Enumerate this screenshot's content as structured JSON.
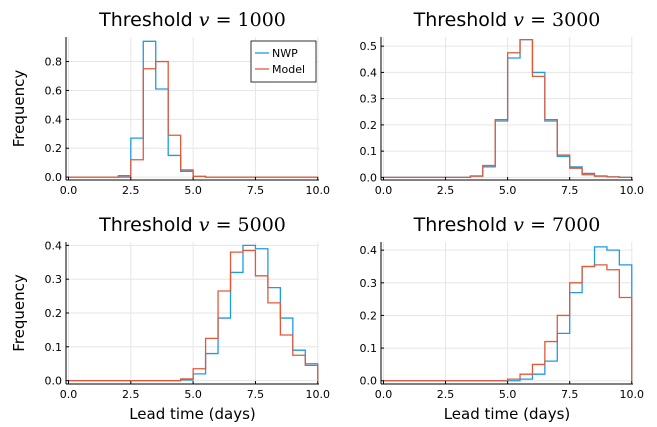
{
  "colors": {
    "nwp": "#1f9be0",
    "model": "#e05a3a"
  },
  "legend": {
    "items": [
      "NWP",
      "Model"
    ],
    "placement": "top-right"
  },
  "chart_data": [
    {
      "type": "line",
      "title_prefix": "Threshold",
      "title_var": "v",
      "title_eq": " = ",
      "title_value": "1000",
      "xlabel": "",
      "ylabel": "Frequency",
      "xlim": [
        -0.1,
        10.05
      ],
      "ylim": [
        -0.02,
        0.97
      ],
      "xticks": [
        "0.0",
        "2.5",
        "5.0",
        "7.5",
        "10.0"
      ],
      "xtick_values": [
        0,
        2.5,
        5,
        7.5,
        10
      ],
      "yticks": [
        "0.0",
        "0.2",
        "0.4",
        "0.6",
        "0.8"
      ],
      "ytick_values": [
        0,
        0.2,
        0.4,
        0.6,
        0.8
      ],
      "bin_edges": [
        0,
        0.5,
        1,
        1.5,
        2,
        2.5,
        3,
        3.5,
        4,
        4.5,
        5,
        5.5,
        6,
        6.5,
        7,
        7.5,
        8,
        8.5,
        9,
        9.5,
        10
      ],
      "grid": true,
      "show_legend": true,
      "series": [
        {
          "name": "NWP",
          "values": [
            0,
            0,
            0,
            0,
            0.01,
            0.27,
            0.94,
            0.61,
            0.15,
            0.04,
            0.005,
            0,
            0,
            0,
            0,
            0,
            0,
            0,
            0,
            0
          ]
        },
        {
          "name": "Model",
          "values": [
            0,
            0,
            0,
            0,
            0,
            0.12,
            0.75,
            0.8,
            0.29,
            0.05,
            0.005,
            0,
            0,
            0,
            0,
            0,
            0,
            0,
            0,
            0
          ]
        }
      ]
    },
    {
      "type": "line",
      "title_prefix": "Threshold",
      "title_var": "v",
      "title_eq": " = ",
      "title_value": "3000",
      "xlabel": "",
      "ylabel": "",
      "xlim": [
        -0.1,
        10.05
      ],
      "ylim": [
        -0.01,
        0.535
      ],
      "xticks": [
        "0.0",
        "2.5",
        "5.0",
        "7.5",
        "10.0"
      ],
      "xtick_values": [
        0,
        2.5,
        5,
        7.5,
        10
      ],
      "yticks": [
        "0.0",
        "0.1",
        "0.2",
        "0.3",
        "0.4",
        "0.5"
      ],
      "ytick_values": [
        0,
        0.1,
        0.2,
        0.3,
        0.4,
        0.5
      ],
      "bin_edges": [
        0,
        0.5,
        1,
        1.5,
        2,
        2.5,
        3,
        3.5,
        4,
        4.5,
        5,
        5.5,
        6,
        6.5,
        7,
        7.5,
        8,
        8.5,
        9,
        9.5,
        10
      ],
      "grid": true,
      "show_legend": false,
      "series": [
        {
          "name": "NWP",
          "values": [
            0,
            0,
            0,
            0,
            0,
            0,
            0,
            0.005,
            0.04,
            0.215,
            0.455,
            0.525,
            0.4,
            0.215,
            0.08,
            0.04,
            0.015,
            0.005,
            0.002,
            0
          ]
        },
        {
          "name": "Model",
          "values": [
            0,
            0,
            0,
            0,
            0,
            0,
            0,
            0.005,
            0.045,
            0.22,
            0.475,
            0.525,
            0.385,
            0.22,
            0.085,
            0.035,
            0.01,
            0.005,
            0.002,
            0
          ]
        }
      ]
    },
    {
      "type": "line",
      "title_prefix": "Threshold",
      "title_var": "v",
      "title_eq": " = ",
      "title_value": "5000",
      "xlabel": "Lead time (days)",
      "ylabel": "Frequency",
      "xlim": [
        -0.1,
        10.05
      ],
      "ylim": [
        -0.01,
        0.41
      ],
      "xticks": [
        "0.0",
        "2.5",
        "5.0",
        "7.5",
        "10.0"
      ],
      "xtick_values": [
        0,
        2.5,
        5,
        7.5,
        10
      ],
      "yticks": [
        "0.0",
        "0.1",
        "0.2",
        "0.3",
        "0.4"
      ],
      "ytick_values": [
        0,
        0.1,
        0.2,
        0.3,
        0.4
      ],
      "bin_edges": [
        0,
        0.5,
        1,
        1.5,
        2,
        2.5,
        3,
        3.5,
        4,
        4.5,
        5,
        5.5,
        6,
        6.5,
        7,
        7.5,
        8,
        8.5,
        9,
        9.5,
        10
      ],
      "grid": true,
      "show_legend": false,
      "series": [
        {
          "name": "NWP",
          "values": [
            0,
            0,
            0,
            0,
            0,
            0,
            0,
            0,
            0,
            0.002,
            0.02,
            0.08,
            0.185,
            0.32,
            0.4,
            0.39,
            0.275,
            0.185,
            0.09,
            0.05
          ]
        },
        {
          "name": "Model",
          "values": [
            0,
            0,
            0,
            0,
            0,
            0,
            0,
            0,
            0,
            0.005,
            0.035,
            0.125,
            0.265,
            0.38,
            0.385,
            0.31,
            0.23,
            0.135,
            0.075,
            0.045
          ]
        }
      ]
    },
    {
      "type": "line",
      "title_prefix": "Threshold",
      "title_var": "v",
      "title_eq": " = ",
      "title_value": "7000",
      "xlabel": "Lead time (days)",
      "ylabel": "",
      "xlim": [
        -0.1,
        10.05
      ],
      "ylim": [
        -0.01,
        0.425
      ],
      "xticks": [
        "0.0",
        "2.5",
        "5.0",
        "7.5",
        "10.0"
      ],
      "xtick_values": [
        0,
        2.5,
        5,
        7.5,
        10
      ],
      "yticks": [
        "0.0",
        "0.1",
        "0.2",
        "0.3",
        "0.4"
      ],
      "ytick_values": [
        0,
        0.1,
        0.2,
        0.3,
        0.4
      ],
      "bin_edges": [
        0,
        0.5,
        1,
        1.5,
        2,
        2.5,
        3,
        3.5,
        4,
        4.5,
        5,
        5.5,
        6,
        6.5,
        7,
        7.5,
        8,
        8.5,
        9,
        9.5,
        10
      ],
      "grid": true,
      "show_legend": false,
      "series": [
        {
          "name": "NWP",
          "values": [
            0,
            0,
            0,
            0,
            0,
            0,
            0,
            0,
            0,
            0,
            0,
            0.005,
            0.02,
            0.06,
            0.145,
            0.27,
            0.35,
            0.41,
            0.4,
            0.355
          ]
        },
        {
          "name": "Model",
          "values": [
            0,
            0,
            0,
            0,
            0,
            0,
            0,
            0,
            0,
            0,
            0.005,
            0.02,
            0.05,
            0.12,
            0.2,
            0.3,
            0.35,
            0.355,
            0.34,
            0.255
          ]
        }
      ]
    }
  ]
}
